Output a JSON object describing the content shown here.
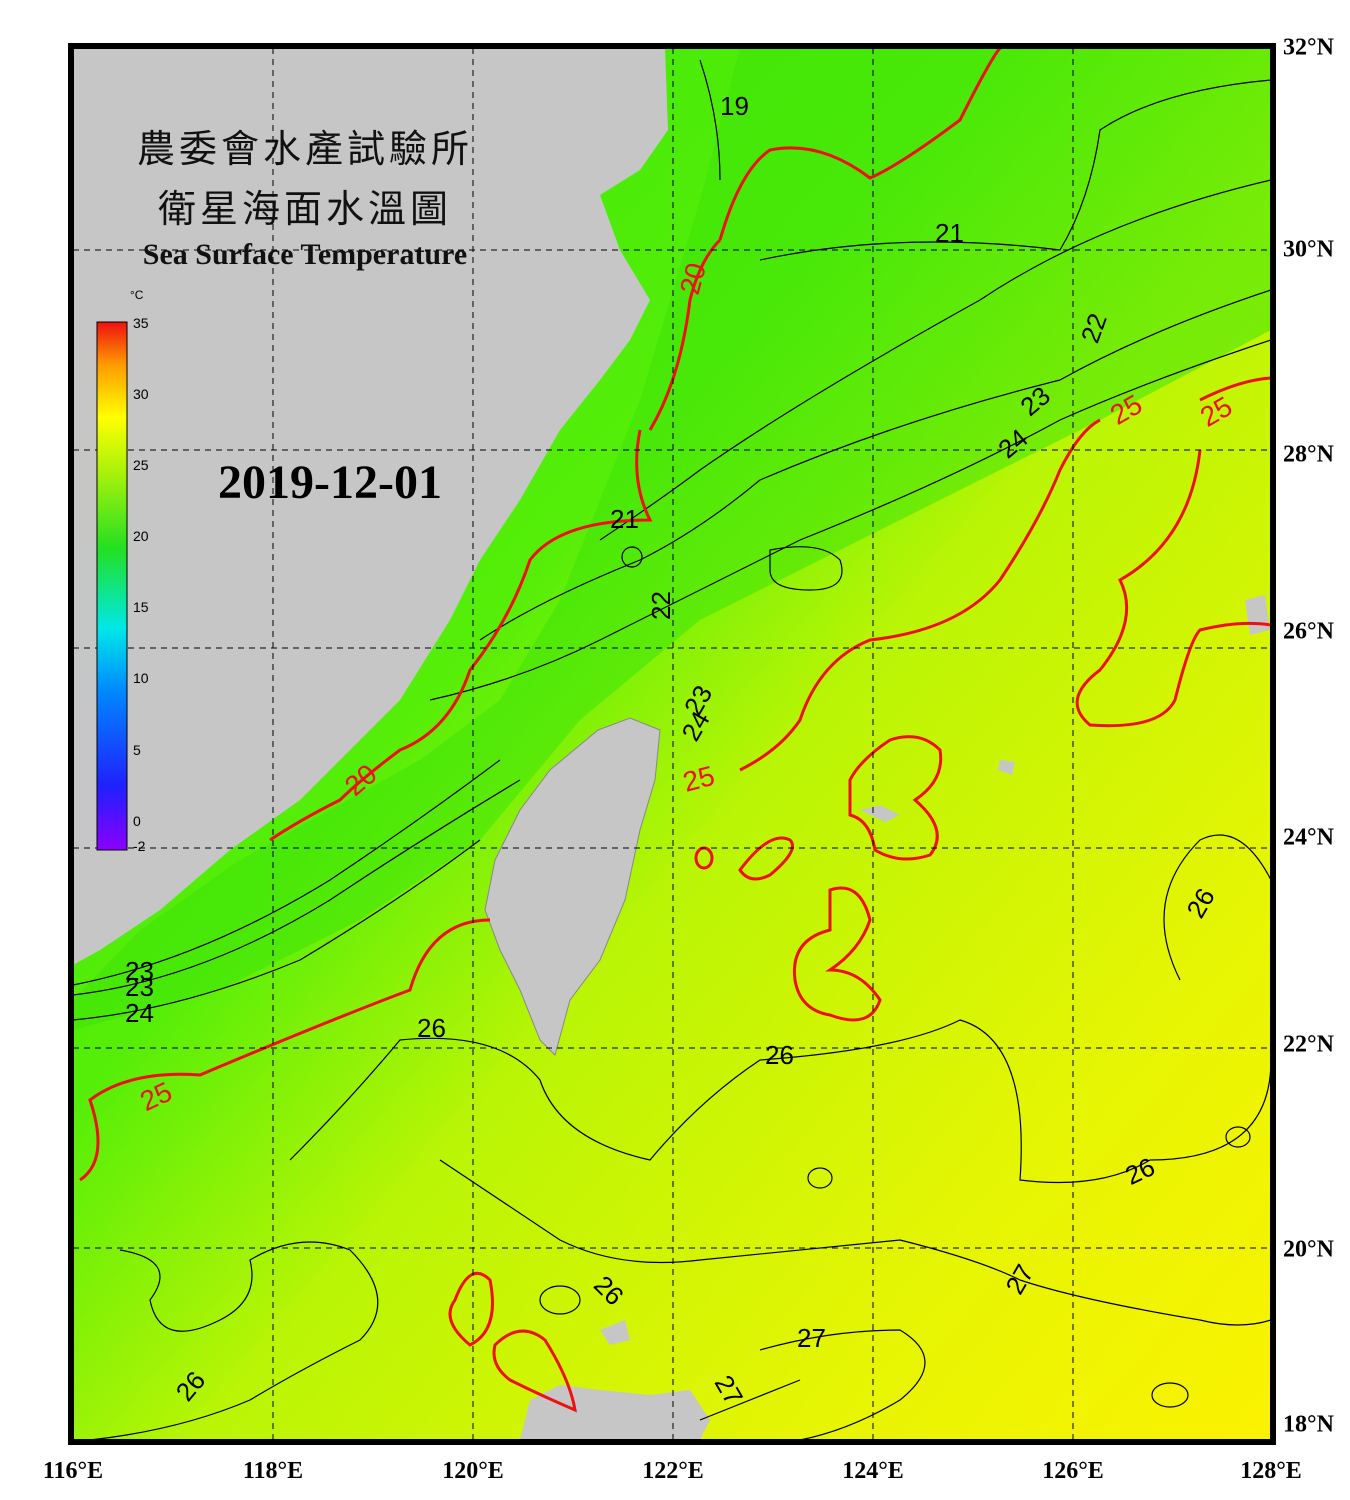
{
  "title_cn_line1": "農委會水產試驗所",
  "title_cn_line2": "衛星海面水溫圖",
  "title_en": "Sea Surface Temperature",
  "date": "2019-12-01",
  "colorbar": {
    "unit": "°C",
    "ticks": [
      "35",
      "30",
      "25",
      "20",
      "15",
      "10",
      "5",
      "0",
      "-2"
    ],
    "min": -2,
    "max": 35
  },
  "lon_labels": [
    "116°E",
    "118°E",
    "120°E",
    "122°E",
    "124°E",
    "126°E",
    "128°E"
  ],
  "lat_labels": [
    "32°N",
    "30°N",
    "28°N",
    "26°N",
    "24°N",
    "22°N",
    "20°N",
    "18°N"
  ],
  "contour_labels": {
    "black": [
      "19",
      "21",
      "22",
      "23",
      "24",
      "21",
      "22",
      "23",
      "24",
      "23",
      "23",
      "24",
      "26",
      "26",
      "26",
      "26",
      "27",
      "27",
      "27",
      "26",
      "26",
      "26"
    ],
    "red": [
      "20",
      "25",
      "25",
      "20",
      "25",
      "25"
    ]
  },
  "colors": {
    "land": "#c6c6c6",
    "warm_sea": "#e8f50a",
    "cool_sea": "#39ea0a",
    "contour_red": "#ee1111",
    "contour_black": "#000000"
  }
}
